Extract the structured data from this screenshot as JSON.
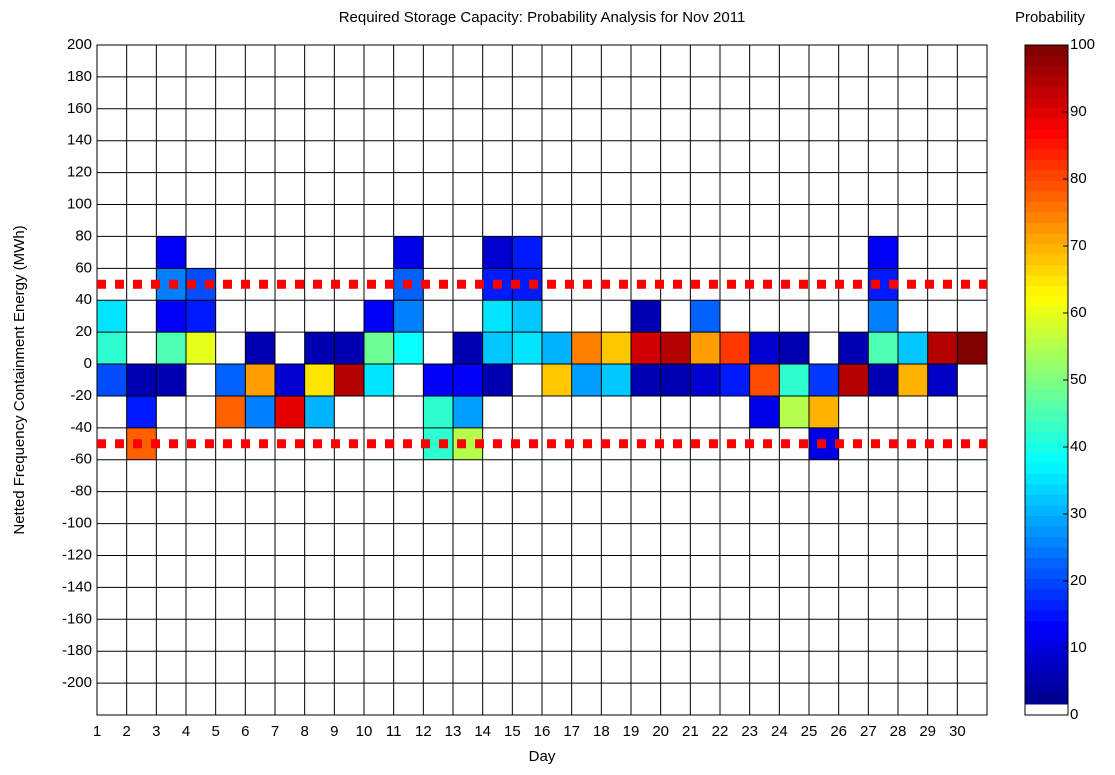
{
  "chart_data": {
    "type": "heatmap",
    "title": "Required Storage Capacity: Probability Analysis for Nov 2011",
    "x_label": "Day",
    "y_label": "Netted Frequency Containment Energy (MWh)",
    "colorbar_label": "Probability",
    "x": [
      1,
      2,
      3,
      4,
      5,
      6,
      7,
      8,
      9,
      10,
      11,
      12,
      13,
      14,
      15,
      16,
      17,
      18,
      19,
      20,
      21,
      22,
      23,
      24,
      25,
      26,
      27,
      28,
      29,
      30
    ],
    "y_bins": [
      60,
      40,
      20,
      0,
      -20,
      -40,
      -60
    ],
    "bin_height": 20,
    "values": [
      [
        0,
        0,
        12,
        0,
        0,
        0,
        0,
        0,
        0,
        0,
        10,
        0,
        0,
        8,
        15,
        0,
        0,
        0,
        0,
        0,
        0,
        0,
        0,
        0,
        0,
        0,
        12,
        0,
        0,
        0
      ],
      [
        0,
        0,
        25,
        20,
        0,
        0,
        0,
        0,
        0,
        0,
        22,
        0,
        0,
        15,
        15,
        0,
        0,
        0,
        0,
        0,
        0,
        0,
        0,
        0,
        0,
        0,
        15,
        0,
        0,
        0
      ],
      [
        35,
        0,
        12,
        15,
        0,
        0,
        0,
        0,
        0,
        12,
        25,
        0,
        0,
        35,
        32,
        0,
        0,
        0,
        5,
        0,
        22,
        0,
        0,
        0,
        0,
        0,
        25,
        0,
        0,
        0
      ],
      [
        42,
        0,
        45,
        60,
        0,
        5,
        0,
        5,
        5,
        48,
        38,
        0,
        5,
        32,
        35,
        30,
        75,
        68,
        92,
        95,
        72,
        82,
        8,
        5,
        0,
        5,
        45,
        32,
        95,
        100
      ],
      [
        20,
        5,
        5,
        0,
        22,
        72,
        8,
        65,
        95,
        35,
        0,
        12,
        12,
        5,
        0,
        68,
        28,
        32,
        5,
        5,
        8,
        15,
        80,
        42,
        18,
        95,
        5,
        70,
        7,
        0
      ],
      [
        0,
        15,
        0,
        0,
        78,
        25,
        90,
        30,
        0,
        0,
        0,
        42,
        28,
        0,
        0,
        0,
        0,
        0,
        0,
        0,
        0,
        0,
        10,
        55,
        70,
        0,
        0,
        0,
        0,
        0
      ],
      [
        0,
        78,
        0,
        0,
        0,
        0,
        0,
        0,
        0,
        0,
        0,
        42,
        55,
        0,
        0,
        0,
        0,
        0,
        0,
        0,
        0,
        0,
        0,
        0,
        10,
        0,
        0,
        0,
        0,
        0
      ]
    ],
    "xlim": [
      1,
      31
    ],
    "xticks": [
      1,
      2,
      3,
      4,
      5,
      6,
      7,
      8,
      9,
      10,
      11,
      12,
      13,
      14,
      15,
      16,
      17,
      18,
      19,
      20,
      21,
      22,
      23,
      24,
      25,
      26,
      27,
      28,
      29,
      30
    ],
    "ylim": [
      -220,
      200
    ],
    "yticks": [
      200,
      180,
      160,
      140,
      120,
      100,
      80,
      60,
      40,
      20,
      0,
      -20,
      -40,
      -60,
      -80,
      -100,
      -120,
      -140,
      -160,
      -180,
      -200
    ],
    "clim": [
      0,
      100
    ],
    "cticks": [
      0,
      10,
      20,
      30,
      40,
      50,
      60,
      70,
      80,
      90,
      100
    ],
    "colormap": "jet",
    "zero_color": "#ffffff",
    "grid": true,
    "reference_lines": [
      50,
      -50
    ],
    "reference_color": "#ff0000"
  }
}
